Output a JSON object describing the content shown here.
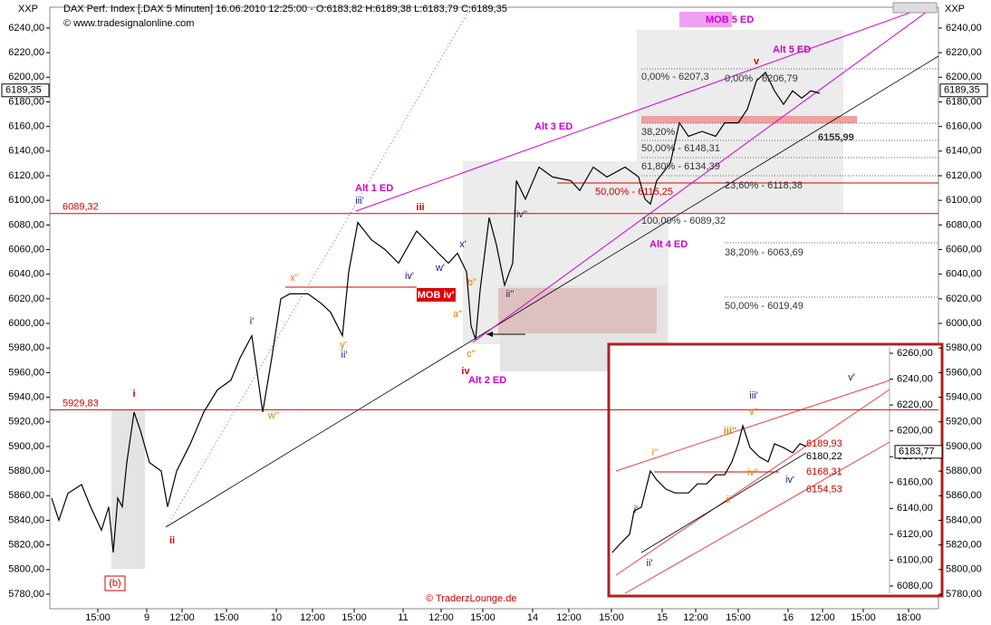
{
  "header": {
    "symbol": "XXP",
    "info": "DAX Perf. Index [.DAX  5 Minuten] 16.06.2010 12:25:00 - O:6183,82 H:6189,38 L:6183,79 C:6189,35",
    "source": "© www.tradesignalonline.com",
    "right_symbol": "XXP"
  },
  "chart_data": [
    {
      "type": "line",
      "color": "#000000",
      "x": [
        2,
        10,
        20,
        35,
        45,
        57,
        65,
        70,
        75,
        80,
        85,
        93,
        100,
        110,
        123,
        130,
        140,
        155,
        170,
        185,
        200,
        210,
        223,
        230,
        235,
        245,
        255,
        265,
        285,
        300,
        310,
        323,
        330,
        340,
        355,
        370,
        385,
        405,
        425,
        440,
        450,
        460,
        465,
        470,
        475,
        485,
        493,
        502,
        511,
        515,
        525,
        540,
        555,
        575,
        585,
        600,
        615,
        635,
        650,
        657,
        663,
        670,
        685,
        695,
        705,
        720,
        735,
        745,
        760,
        770,
        780,
        790,
        800,
        810,
        820,
        830,
        840,
        850
      ],
      "values": [
        5858,
        5840,
        5862,
        5869,
        5851,
        5832,
        5851,
        5814,
        5858,
        5851,
        5887,
        5928,
        5913,
        5887,
        5880,
        5851,
        5880,
        5902,
        5928,
        5946,
        5954,
        5972,
        5990,
        5954,
        5928,
        5972,
        6020,
        6024,
        6024,
        6016,
        6009,
        5990,
        6042,
        6082,
        6068,
        6060,
        6049,
        6075,
        6060,
        6049,
        6057,
        6042,
        5998,
        5987,
        6027,
        6086,
        6064,
        6031,
        6049,
        6116,
        6101,
        6127,
        6119,
        6116,
        6108,
        6127,
        6119,
        6127,
        6119,
        6101,
        6097,
        6116,
        6130,
        6163,
        6152,
        6156,
        6152,
        6163,
        6163,
        6174,
        6197,
        6204,
        6189,
        6178,
        6189,
        6183,
        6189,
        6187
      ],
      "xlim": [
        0,
        981
      ],
      "xticks": [
        {
          "value": 53,
          "label": "15:00"
        },
        {
          "value": 107,
          "label": "9"
        },
        {
          "value": 146,
          "label": "12:00"
        },
        {
          "value": 195,
          "label": "15:00"
        },
        {
          "value": 250,
          "label": "10"
        },
        {
          "value": 290,
          "label": "12:00"
        },
        {
          "value": 336,
          "label": "15:00"
        },
        {
          "value": 390,
          "label": "11"
        },
        {
          "value": 432,
          "label": "12:00"
        },
        {
          "value": 478,
          "label": "15:00"
        },
        {
          "value": 533,
          "label": "14"
        },
        {
          "value": 573,
          "label": "12:00"
        },
        {
          "value": 620,
          "label": "15:00"
        },
        {
          "value": 676,
          "label": "15"
        },
        {
          "value": 713,
          "label": "12:00"
        },
        {
          "value": 760,
          "label": "15:00"
        },
        {
          "value": 815,
          "label": "16"
        },
        {
          "value": 853,
          "label": "12:00"
        },
        {
          "value": 898,
          "label": "15:00"
        },
        {
          "value": 948,
          "label": "18:00"
        }
      ],
      "ylim": [
        5768.2,
        6256.9
      ],
      "yticks": [
        {
          "value": 5780,
          "label": "5780,00"
        },
        {
          "value": 5800,
          "label": "5800,00"
        },
        {
          "value": 5820,
          "label": "5820,00"
        },
        {
          "value": 5840,
          "label": "5840,00"
        },
        {
          "value": 5860,
          "label": "5860,00"
        },
        {
          "value": 5880,
          "label": "5880,00"
        },
        {
          "value": 5900,
          "label": "5900,00"
        },
        {
          "value": 5920,
          "label": "5920,00"
        },
        {
          "value": 5940,
          "label": "5940,00"
        },
        {
          "value": 5960,
          "label": "5960,00"
        },
        {
          "value": 5980,
          "label": "5980,00"
        },
        {
          "value": 6000,
          "label": "6000,00"
        },
        {
          "value": 6020,
          "label": "6020,00"
        },
        {
          "value": 6040,
          "label": "6040,00"
        },
        {
          "value": 6060,
          "label": "6060,00"
        },
        {
          "value": 6080,
          "label": "6080,00"
        },
        {
          "value": 6100,
          "label": "6100,00"
        },
        {
          "value": 6120,
          "label": "6120,00"
        },
        {
          "value": 6140,
          "label": "6140,00"
        },
        {
          "value": 6160,
          "label": "6160,00"
        },
        {
          "value": 6180,
          "label": "6180,00"
        },
        {
          "value": 6200,
          "label": "6200,00"
        },
        {
          "value": 6220,
          "label": "6220,00"
        },
        {
          "value": 6240,
          "label": "6240,00"
        }
      ],
      "last_value": {
        "value": 6189.35,
        "label": "6189,35"
      },
      "hlines": [
        {
          "value": 6089.32,
          "label": "6089,32",
          "color": "#e00000"
        },
        {
          "value": 5929.83,
          "label": "5929,83",
          "color": "#e00000"
        }
      ],
      "annotations": [
        {
          "text": "i",
          "color": "#d00000"
        },
        {
          "text": "ii",
          "color": "#d00000"
        },
        {
          "text": "iii",
          "color": "#d00000"
        },
        {
          "text": "iv",
          "color": "#d00000"
        },
        {
          "text": "v",
          "color": "#d00000"
        },
        {
          "text": "(b)",
          "color": "#d00000"
        },
        {
          "text": "iii'",
          "color": "#1a1a80"
        },
        {
          "text": "i'",
          "color": "#1a1a80"
        },
        {
          "text": "ii'",
          "color": "#1a1a80"
        },
        {
          "text": "iv'",
          "color": "#1a1a80"
        },
        {
          "text": "x'",
          "color": "#1a1a80"
        },
        {
          "text": "w'",
          "color": "#1a1a80"
        },
        {
          "text": "x''",
          "color": "#e08000"
        },
        {
          "text": "y'",
          "color": "#e08000"
        },
        {
          "text": "w''",
          "color": "#e08000"
        },
        {
          "text": "a''",
          "color": "#e08000"
        },
        {
          "text": "b''",
          "color": "#e08000"
        },
        {
          "text": "c''",
          "color": "#e08000"
        },
        {
          "text": "Alt 1 ED",
          "color": "#d000d0"
        },
        {
          "text": "Alt 2 ED",
          "color": "#d000d0"
        },
        {
          "text": "Alt 3 ED",
          "color": "#d000d0"
        },
        {
          "text": "Alt 4 ED",
          "color": "#d000d0"
        },
        {
          "text": "Alt 5 ED",
          "color": "#d000d0"
        },
        {
          "text": "0,00% - 6207,3",
          "color": "#333333"
        },
        {
          "text": "0,00% - 6206,79",
          "color": "#333333"
        },
        {
          "text": "38,20%",
          "color": "#333333"
        },
        {
          "text": "50,00% - 6148,31",
          "color": "#333333"
        },
        {
          "text": "61,80% - 6134,39",
          "color": "#333333"
        },
        {
          "text": "50,00% - 6115,25",
          "color": "#d00000"
        },
        {
          "text": "100,00% - 6089,32",
          "color": "#333333"
        },
        {
          "text": "6155,99",
          "color": "#333333"
        },
        {
          "text": "23,60% - 6118,38",
          "color": "#333333"
        },
        {
          "text": "38,20% - 6063,69",
          "color": "#333333"
        },
        {
          "text": "50,00% - 6019,49",
          "color": "#333333"
        },
        {
          "text": "ii''",
          "color": "#333333"
        },
        {
          "text": "iv''",
          "color": "#333333"
        },
        {
          "text": "MOB 5 ED",
          "color": "#d000d0"
        },
        {
          "text": "MOB iv'",
          "color": "#ffffff"
        }
      ],
      "credit": "© TraderzLounge.de"
    },
    {
      "type": "line",
      "color": "#000000",
      "x": [
        4,
        13,
        23,
        28,
        36,
        41,
        46,
        53,
        63,
        73,
        88,
        98,
        108,
        118,
        128,
        136,
        143,
        148,
        156,
        166,
        176,
        183,
        193,
        203,
        211,
        218
      ],
      "values": [
        6106,
        6113,
        6120,
        6138,
        6141,
        6155,
        6169,
        6162,
        6155,
        6152,
        6152,
        6159,
        6159,
        6166,
        6166,
        6176,
        6190,
        6204,
        6187,
        6180,
        6176,
        6190,
        6187,
        6183,
        6190,
        6188
      ],
      "xlim": [
        0,
        310
      ],
      "ylim": [
        6074.4,
        6264.9
      ],
      "yticks": [
        {
          "value": 6080,
          "label": "6080,00"
        },
        {
          "value": 6100,
          "label": "6100,00"
        },
        {
          "value": 6120,
          "label": "6120,00"
        },
        {
          "value": 6140,
          "label": "6140,00"
        },
        {
          "value": 6160,
          "label": "6160,00"
        },
        {
          "value": 6180,
          "label": "6180,00"
        },
        {
          "value": 6200,
          "label": "6200,00"
        },
        {
          "value": 6220,
          "label": "6220,00"
        },
        {
          "value": 6240,
          "label": "6240,00"
        },
        {
          "value": 6260,
          "label": "6260,00"
        }
      ],
      "last_value": {
        "value": 6183.77,
        "label": "6183,77"
      },
      "price_labels": [
        {
          "value": 6189.93,
          "label": "6189,93",
          "color": "#d00000"
        },
        {
          "value": 6180.22,
          "label": "6180,22",
          "color": "#000000"
        },
        {
          "value": 6168.31,
          "label": "6168,31",
          "color": "#d00000"
        },
        {
          "value": 6154.53,
          "label": "6154,53",
          "color": "#d00000"
        }
      ],
      "annotations": [
        {
          "text": "i'",
          "color": "#1a1a80"
        },
        {
          "text": "ii'",
          "color": "#1a1a80"
        },
        {
          "text": "iii'",
          "color": "#1a1a80"
        },
        {
          "text": "iv'",
          "color": "#1a1a80"
        },
        {
          "text": "v'",
          "color": "#1a1a80"
        },
        {
          "text": "i''",
          "color": "#e08000"
        },
        {
          "text": "iii''",
          "color": "#e08000"
        },
        {
          "text": "v''",
          "color": "#e08000"
        },
        {
          "text": "iv''",
          "color": "#e08000"
        },
        {
          "text": "ii''",
          "color": "#e08000"
        }
      ]
    }
  ]
}
